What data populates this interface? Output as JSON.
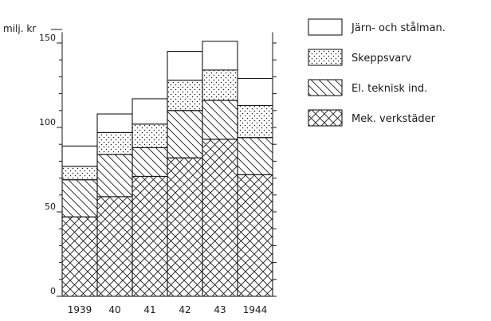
{
  "chart_data": {
    "type": "bar",
    "stacked": true,
    "ylabel": "milj. kr",
    "ylim": [
      0,
      155
    ],
    "yticks": [
      0,
      50,
      100,
      150
    ],
    "categories": [
      "1939",
      "40",
      "41",
      "42",
      "43",
      "1944"
    ],
    "series": [
      {
        "name": "Mek. verkstäder",
        "pattern": "crosshatch",
        "values": [
          47,
          59,
          71,
          82,
          93,
          72
        ]
      },
      {
        "name": "El. teknisk ind.",
        "pattern": "diagonal-hatch",
        "values": [
          22,
          25,
          17,
          28,
          23,
          22
        ]
      },
      {
        "name": "Skeppsvarv",
        "pattern": "dots",
        "values": [
          8,
          13,
          14,
          18,
          18,
          19
        ]
      },
      {
        "name": "Järn- och stålman.",
        "pattern": "blank",
        "values": [
          12,
          11,
          15,
          17,
          17,
          16
        ]
      }
    ],
    "legend_position": "right",
    "grid": false
  }
}
